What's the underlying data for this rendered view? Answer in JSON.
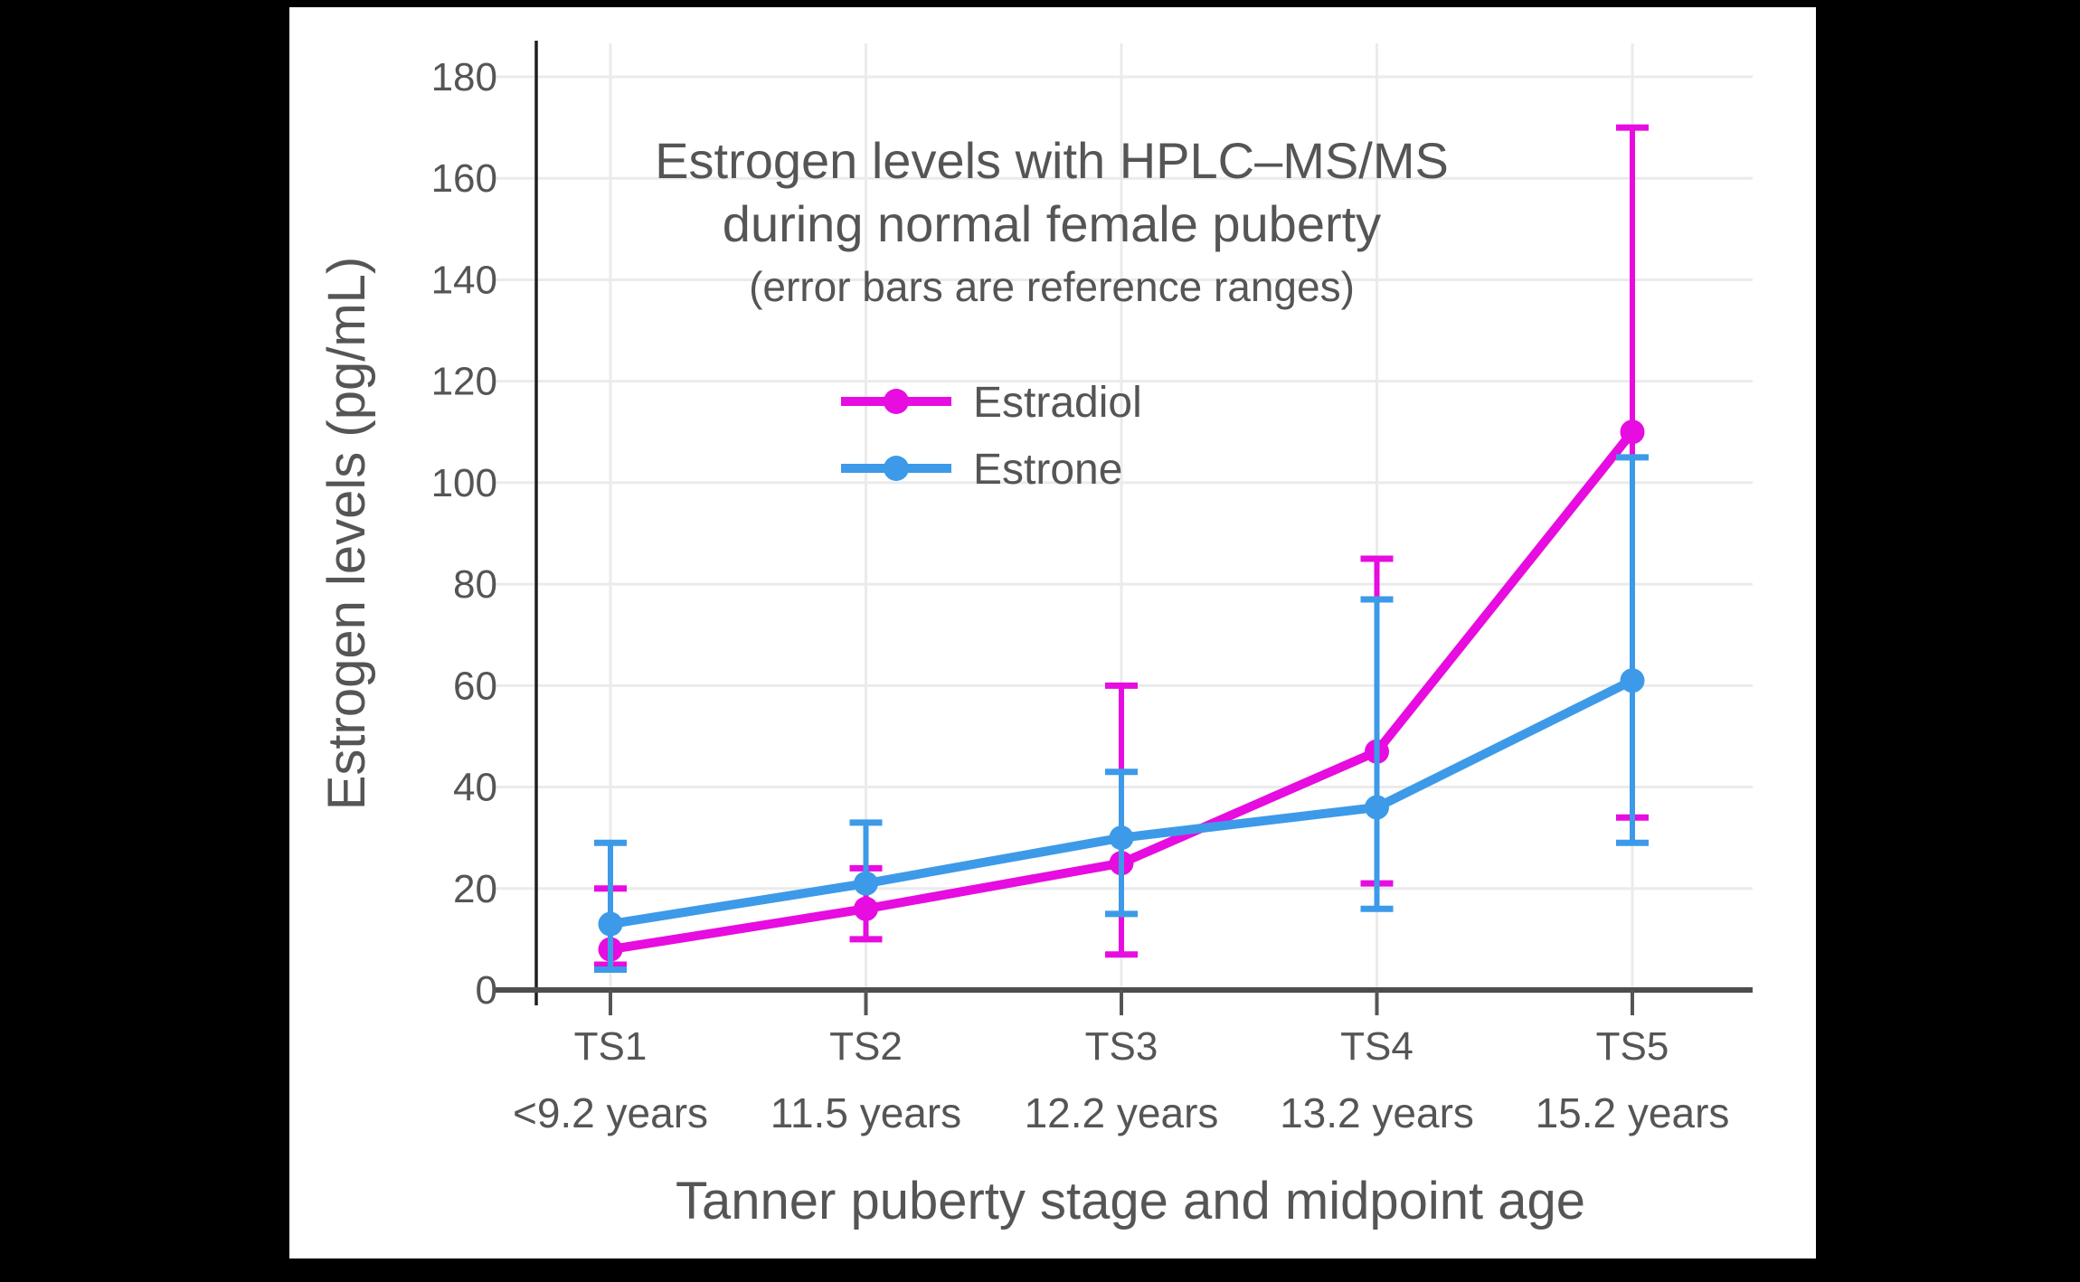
{
  "page": {
    "background_color": "#000000",
    "canvas_color": "#ffffff"
  },
  "chart_data": {
    "type": "line",
    "title_line1": "Estrogen levels with HPLC–MS/MS",
    "title_line2": "during normal female puberty",
    "subtitle": "(error bars are reference ranges)",
    "xlabel": "Tanner puberty stage and midpoint age",
    "ylabel": "Estrogen levels (pg/mL)",
    "categories": [
      {
        "stage": "TS1",
        "age": "<9.2 years"
      },
      {
        "stage": "TS2",
        "age": "11.5 years"
      },
      {
        "stage": "TS3",
        "age": "12.2 years"
      },
      {
        "stage": "TS4",
        "age": "13.2 years"
      },
      {
        "stage": "TS5",
        "age": "15.2 years"
      }
    ],
    "y_ticks": [
      0,
      20,
      40,
      60,
      80,
      100,
      120,
      140,
      160,
      180
    ],
    "ylim": [
      0,
      180
    ],
    "grid": true,
    "legend_position": "inside-upper-left",
    "series": [
      {
        "name": "Estradiol",
        "color": "#E70CDF",
        "values": [
          8,
          16,
          25,
          47,
          110
        ],
        "error_low": [
          5,
          10,
          7,
          21,
          34
        ],
        "error_high": [
          20,
          24,
          60,
          85,
          170
        ]
      },
      {
        "name": "Estrone",
        "color": "#3D9AE8",
        "values": [
          13,
          21,
          30,
          36,
          61
        ],
        "error_low": [
          4,
          null,
          15,
          16,
          29
        ],
        "error_high": [
          29,
          33,
          43,
          77,
          105
        ]
      }
    ],
    "colors": {
      "text": "#555555",
      "grid": "#EBEBEB",
      "x_axis": "#4D4D4D",
      "y_axis": "#1F1F1F",
      "tick": "#555555"
    }
  }
}
